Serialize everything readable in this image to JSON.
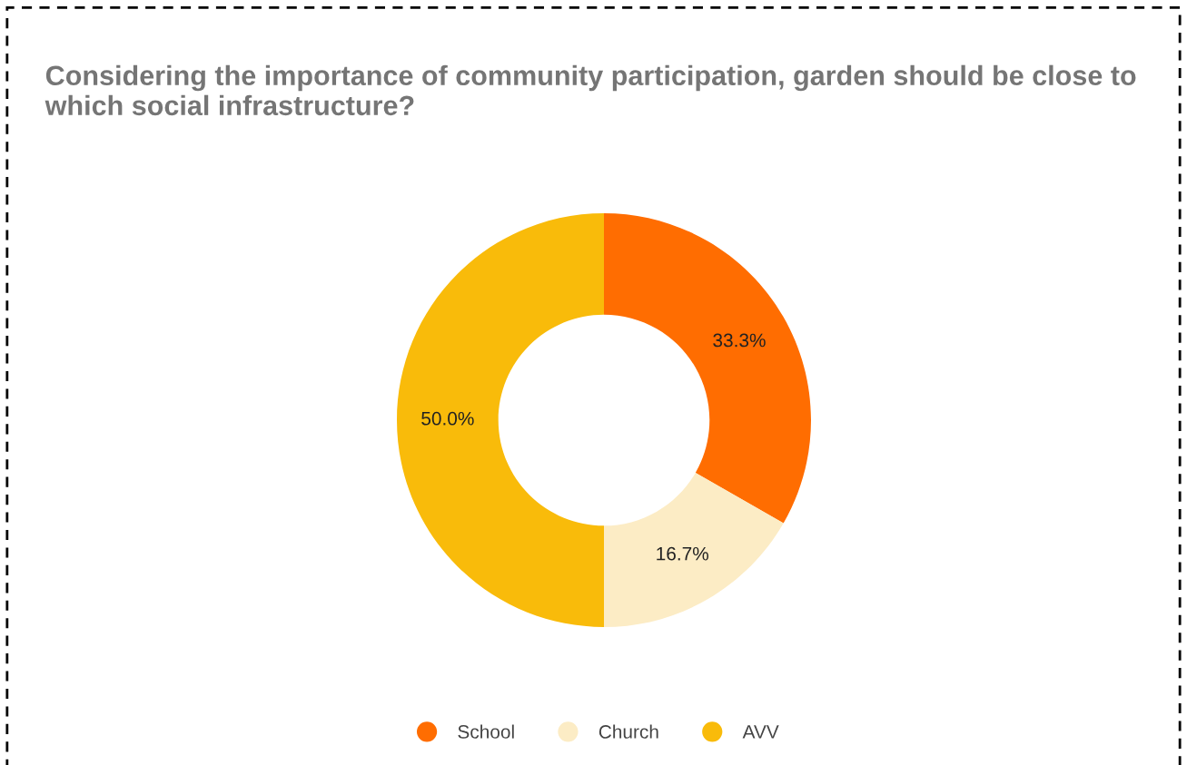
{
  "chart_data": {
    "type": "donut",
    "title": "Considering the importance of community participation, garden should be close to which social infrastructure?",
    "categories": [
      "School",
      "Church",
      "AVV"
    ],
    "values": [
      33.3,
      16.7,
      50.0
    ],
    "colors": [
      "#ff6d01",
      "#fcecc5",
      "#f9bb0a"
    ],
    "value_labels": [
      "33.3%",
      "16.7%",
      "50.0%"
    ],
    "legend": "bottom"
  }
}
